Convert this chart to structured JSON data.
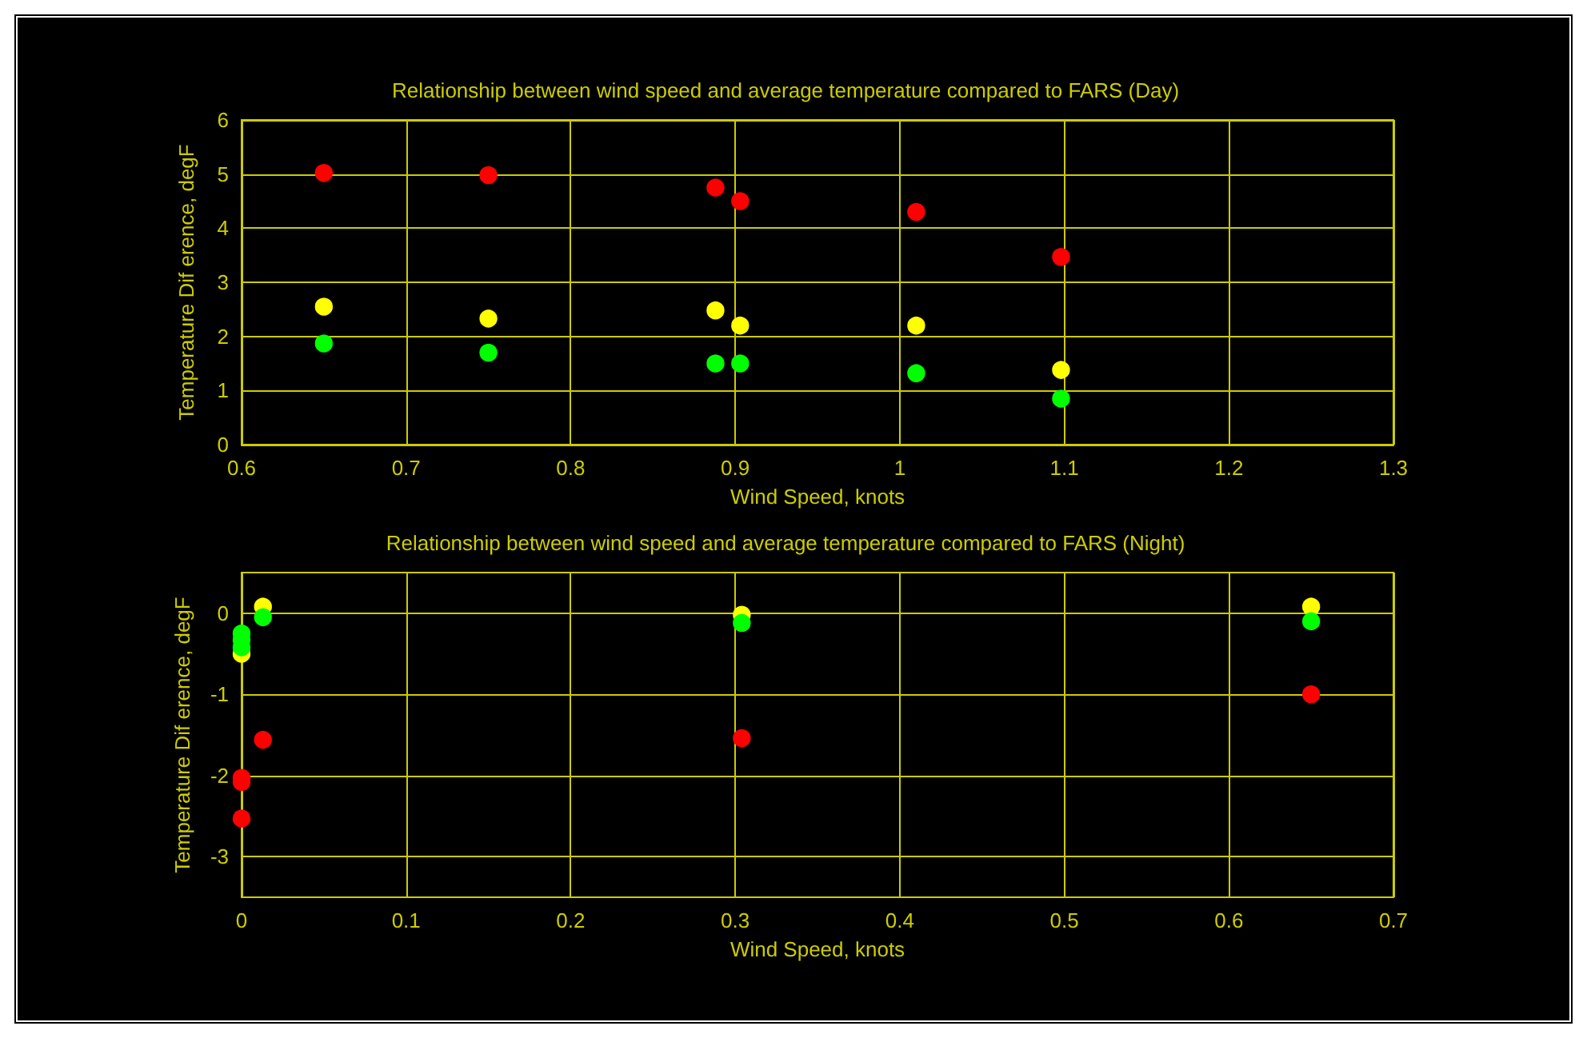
{
  "chart_data": [
    {
      "type": "scatter",
      "title": "Relationship between wind speed and average temperature compared to FARS (Day)",
      "xlabel": "Wind Speed, knots",
      "ylabel": "Temperature Dif erence, degF",
      "x": [
        0.65,
        0.75,
        0.888,
        0.903,
        1.01,
        1.098
      ],
      "series": [
        {
          "color": "#ff0000",
          "values": [
            5.02,
            4.98,
            4.75,
            4.5,
            4.3,
            3.47
          ]
        },
        {
          "color": "#ffff00",
          "values": [
            2.55,
            2.33,
            2.48,
            2.2,
            2.2,
            1.38
          ]
        },
        {
          "color": "#00ff00",
          "values": [
            1.87,
            1.7,
            1.5,
            1.5,
            1.32,
            0.85
          ]
        }
      ],
      "xlim": [
        0.6,
        1.3
      ],
      "xticks": [
        0.6,
        0.7,
        0.8,
        0.9,
        1,
        1.1,
        1.2,
        1.3
      ],
      "ylim": [
        0,
        6
      ],
      "yticks": [
        0,
        1,
        2,
        3,
        4,
        5,
        6
      ],
      "grid": true,
      "marker": "circle"
    },
    {
      "type": "scatter",
      "title": "Relationship between wind speed and average temperature compared to FARS (Night)",
      "xlabel": "Wind Speed, knots",
      "ylabel": "Temperature Dif erence, degF",
      "x": [
        0,
        0,
        0,
        0.013,
        0.304,
        0.65
      ],
      "series": [
        {
          "color": "#ff0000",
          "values": [
            -2.03,
            -2.08,
            -2.53,
            -1.56,
            -1.54,
            -1.0
          ]
        },
        {
          "color": "#ffff00",
          "values": [
            null,
            null,
            -0.5,
            0.08,
            -0.02,
            0.08
          ]
        },
        {
          "color": "#00ff00",
          "values": [
            -0.25,
            -0.33,
            -0.42,
            -0.05,
            -0.12,
            -0.1
          ]
        }
      ],
      "xlim": [
        0,
        0.7
      ],
      "xticks": [
        0,
        0.1,
        0.2,
        0.3,
        0.4,
        0.5,
        0.6,
        0.7
      ],
      "ylim": [
        -3.5,
        0.5
      ],
      "yticks": [
        -3,
        -2,
        -1,
        0
      ],
      "grid": true,
      "marker": "circle"
    }
  ]
}
